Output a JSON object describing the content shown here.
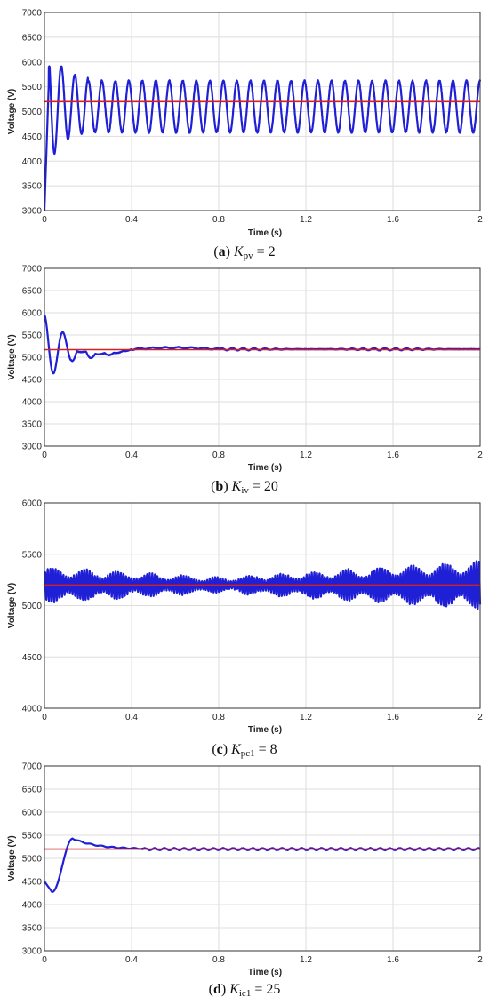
{
  "colors": {
    "signal": "#1f1fd6",
    "reference": "#d42020",
    "grid": "#dedede",
    "axis": "#333333"
  },
  "chart_data": [
    {
      "type": "line",
      "panel": "a",
      "ylabel": "Voltage (V)",
      "xlabel": "Time (s)",
      "xlim": [
        0,
        2
      ],
      "ylim": [
        3000,
        7000
      ],
      "xticks": [
        "0",
        "0.4",
        "0.8",
        "1.2",
        "1.6",
        "2"
      ],
      "yticks": [
        "3000",
        "3500",
        "4000",
        "4500",
        "5000",
        "5500",
        "6000",
        "6500",
        "7000"
      ],
      "grid": true,
      "reference": 5200,
      "signal": {
        "mode": "sustained-oscillation",
        "start": 3000,
        "settle": 5100,
        "amplitude": 520,
        "period": 0.062,
        "initial_min": 3900,
        "initial_max": 5900
      },
      "caption": {
        "letter": "a",
        "symbol": "K",
        "sub": "pv",
        "value": "2"
      }
    },
    {
      "type": "line",
      "panel": "b",
      "ylabel": "Voltage (V)",
      "xlabel": "Time (s)",
      "xlim": [
        0,
        2
      ],
      "ylim": [
        3000,
        7000
      ],
      "xticks": [
        "0",
        "0.4",
        "0.8",
        "1.2",
        "1.6",
        "2"
      ],
      "yticks": [
        "3000",
        "3500",
        "4000",
        "4500",
        "5000",
        "5500",
        "6000",
        "6500",
        "7000"
      ],
      "grid": true,
      "reference": 5170,
      "signal": {
        "mode": "decaying",
        "start": 5950,
        "settle": 5180,
        "undershoot": 5060,
        "ripple": 25
      },
      "caption": {
        "letter": "b",
        "symbol": "K",
        "sub": "iv",
        "value": "20"
      }
    },
    {
      "type": "line",
      "panel": "c",
      "ylabel": "Voltage (V)",
      "xlabel": "Time (s)",
      "xlim": [
        0,
        2
      ],
      "ylim": [
        4000,
        6000
      ],
      "xticks": [
        "0",
        "0.4",
        "0.8",
        "1.2",
        "1.6",
        "2"
      ],
      "yticks": [
        "4000",
        "4500",
        "5000",
        "5500",
        "6000"
      ],
      "grid": true,
      "reference": 5200,
      "signal": {
        "mode": "band-oscillation",
        "settle": 5200,
        "amplitude_start": 150,
        "amplitude_mid": 60,
        "amplitude_end": 200,
        "period": 0.012
      },
      "caption": {
        "letter": "c",
        "symbol": "K",
        "sub": "pc1",
        "value": "8"
      }
    },
    {
      "type": "line",
      "panel": "d",
      "ylabel": "Voltage (V)",
      "xlabel": "Time (s)",
      "xlim": [
        0,
        2
      ],
      "ylim": [
        3000,
        7000
      ],
      "xticks": [
        "0",
        "0.4",
        "0.8",
        "1.2",
        "1.6",
        "2"
      ],
      "yticks": [
        "3000",
        "3500",
        "4000",
        "4500",
        "5000",
        "5500",
        "6000",
        "6500",
        "7000"
      ],
      "grid": true,
      "reference": 5200,
      "signal": {
        "mode": "dip-overshoot",
        "start": 4500,
        "dip": 4270,
        "overshoot": 5430,
        "settle": 5200,
        "ripple": 20
      },
      "caption": {
        "letter": "d",
        "symbol": "K",
        "sub": "ic1",
        "value": "25"
      }
    }
  ]
}
